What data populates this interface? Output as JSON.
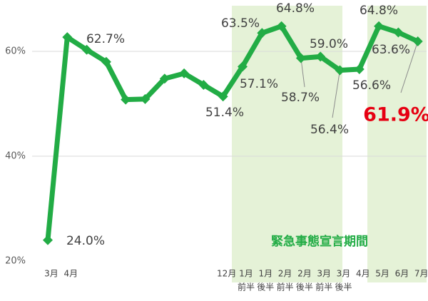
{
  "chart_data": {
    "type": "line",
    "categories": [
      "3月",
      "4月",
      null,
      null,
      null,
      null,
      null,
      null,
      null,
      "12月",
      "1月",
      "1月",
      "2月",
      "2月",
      "3月",
      "3月",
      "4月",
      "5月",
      "6月",
      "7月"
    ],
    "category_sublabels": [
      null,
      null,
      null,
      null,
      null,
      null,
      null,
      null,
      null,
      null,
      "前半",
      "後半",
      "前半",
      "後半",
      "前半",
      "後半",
      null,
      null,
      null,
      null
    ],
    "series": [
      {
        "color": "#22ac45",
        "values": [
          24.0,
          62.7,
          60.3,
          58.0,
          50.8,
          50.9,
          54.8,
          55.8,
          53.6,
          51.4,
          57.1,
          63.5,
          64.8,
          58.7,
          59.0,
          56.4,
          56.6,
          64.8,
          63.6,
          61.9
        ],
        "value_labels": [
          "24.0%",
          "62.7%",
          null,
          null,
          null,
          null,
          null,
          null,
          null,
          "51.4%",
          "57.1%",
          "63.5%",
          "64.8%",
          "58.7%",
          "59.0%",
          "56.4%",
          "56.6%",
          "64.8%",
          "63.6%",
          "61.9%"
        ]
      }
    ],
    "ylim": [
      20,
      68
    ],
    "yticks": [
      {
        "value": 20,
        "label": "20%"
      },
      {
        "value": 40,
        "label": "40%"
      },
      {
        "value": 60,
        "label": "60%"
      }
    ],
    "grid": true,
    "annotation": "緊急事態宣言期間",
    "highlight_color": "#e5f2d7"
  }
}
